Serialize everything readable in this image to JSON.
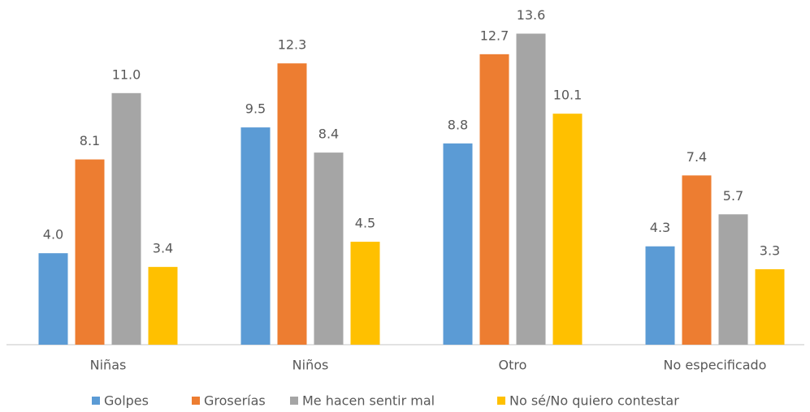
{
  "chart_data": {
    "type": "bar",
    "categories": [
      "Niñas",
      "Niños",
      "Otro",
      "No especificado"
    ],
    "series": [
      {
        "name": "Golpes",
        "color": "#5b9bd5",
        "values": [
          4,
          9.5,
          8.8,
          4.3
        ],
        "value_labels": [
          "4.0",
          "9.5",
          "8.8",
          "4.3"
        ]
      },
      {
        "name": "Groserías",
        "color": "#ed7d31",
        "values": [
          8.1,
          12.3,
          12.7,
          7.4
        ],
        "value_labels": [
          "8.1",
          "12.3",
          "12.7",
          "7.4"
        ]
      },
      {
        "name": "Me hacen sentir mal",
        "color": "#a5a5a5",
        "values": [
          11,
          8.4,
          13.6,
          5.7
        ],
        "value_labels": [
          "11.0",
          "8.4",
          "13.6",
          "5.7"
        ]
      },
      {
        "name": "No sé/No quiero contestar",
        "color": "#ffc000",
        "values": [
          3.4,
          4.5,
          10.1,
          3.3
        ],
        "value_labels": [
          "3.4",
          "4.5",
          "10.1",
          "3.3"
        ]
      }
    ]
  }
}
